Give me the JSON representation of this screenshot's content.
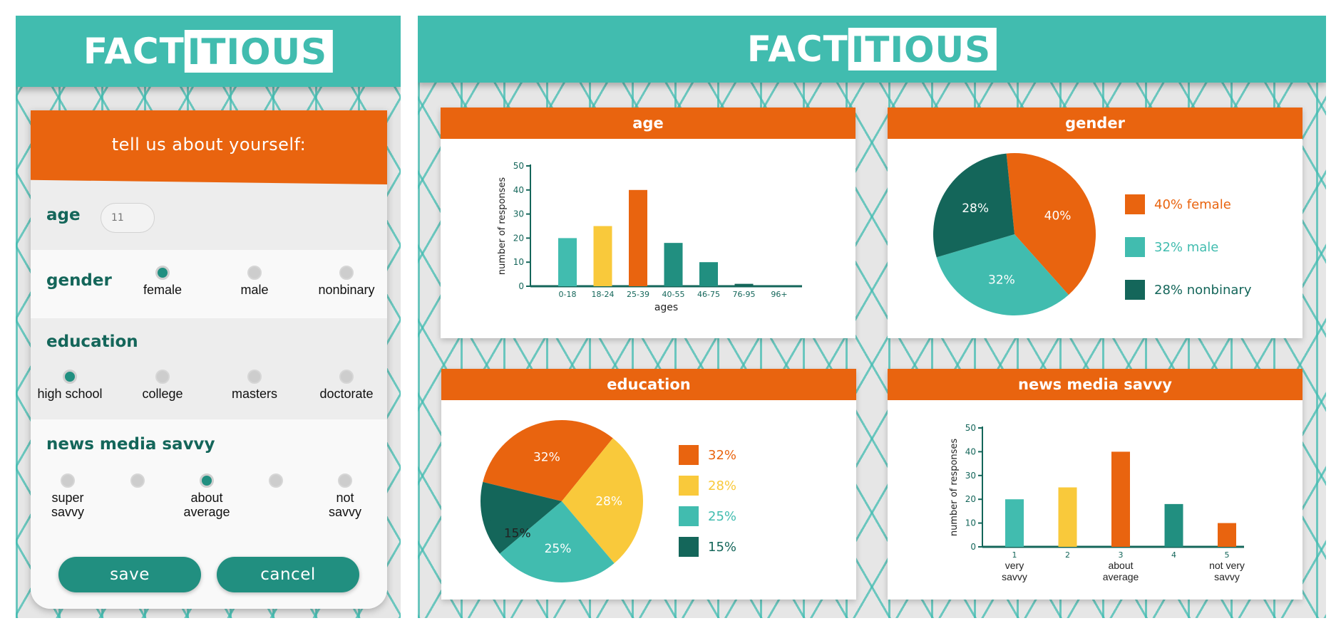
{
  "brand": {
    "logo_part1": "FACT",
    "logo_part2": "ITIOUS"
  },
  "form": {
    "banner": "tell us about yourself:",
    "age": {
      "label": "age",
      "placeholder": "11"
    },
    "gender": {
      "label": "gender",
      "options": [
        "female",
        "male",
        "nonbinary"
      ],
      "selected": "female"
    },
    "education": {
      "label": "education",
      "options": [
        "high school",
        "college",
        "masters",
        "doctorate"
      ],
      "selected": "high school"
    },
    "savvy": {
      "label": "news media savvy",
      "option_labels": [
        "super\nsavvy",
        "",
        "about\naverage",
        "",
        "not\nsavvy"
      ],
      "selected_index": 2
    },
    "save_label": "save",
    "cancel_label": "cancel"
  },
  "colors": {
    "teal": "#41bcaf",
    "dark_teal": "#14665a",
    "mid_teal": "#218f80",
    "orange": "#e9640f",
    "yellow": "#f9c93b"
  },
  "chart_data": [
    {
      "id": "age",
      "type": "bar",
      "title": "age",
      "categories": [
        "0-18",
        "18-24",
        "25-39",
        "40-55",
        "46-75",
        "76-95",
        "96+"
      ],
      "values": [
        20,
        25,
        40,
        18,
        10,
        1,
        0
      ],
      "bar_colors": [
        "#41bcaf",
        "#f9c93b",
        "#e9640f",
        "#218f80",
        "#218f80",
        "#14665a",
        "#14665a"
      ],
      "xlabel": "ages",
      "ylabel": "number of responses",
      "ylim": [
        0,
        50
      ],
      "yticks": [
        0,
        10,
        20,
        30,
        40,
        50
      ]
    },
    {
      "id": "gender",
      "type": "pie",
      "title": "gender",
      "slices": [
        {
          "label": "40%",
          "legend": "40% female",
          "value": 40,
          "color": "#e9640f"
        },
        {
          "label": "32%",
          "legend": "32% male",
          "value": 32,
          "color": "#41bcaf"
        },
        {
          "label": "28%",
          "legend": "28% nonbinary",
          "value": 28,
          "color": "#14665a"
        }
      ]
    },
    {
      "id": "education",
      "type": "pie",
      "title": "education",
      "slices": [
        {
          "label": "32%",
          "legend": "32%",
          "value": 32,
          "color": "#e9640f"
        },
        {
          "label": "28%",
          "legend": "28%",
          "value": 28,
          "color": "#f9c93b"
        },
        {
          "label": "25%",
          "legend": "25%",
          "value": 25,
          "color": "#41bcaf"
        },
        {
          "label": "15%",
          "legend": "15%",
          "value": 15,
          "color": "#14665a"
        }
      ]
    },
    {
      "id": "savvy",
      "type": "bar",
      "title": "news media savvy",
      "categories": [
        "1",
        "2",
        "3",
        "4",
        "5"
      ],
      "category_sublabels": [
        "very\nsavvy",
        "",
        "about\naverage",
        "",
        "not very\nsavvy"
      ],
      "values": [
        20,
        25,
        40,
        18,
        10
      ],
      "bar_colors": [
        "#41bcaf",
        "#f9c93b",
        "#e9640f",
        "#218f80",
        "#e9640f"
      ],
      "ylabel": "number of responses",
      "ylim": [
        0,
        50
      ],
      "yticks": [
        0,
        10,
        20,
        30,
        40,
        50
      ]
    }
  ]
}
